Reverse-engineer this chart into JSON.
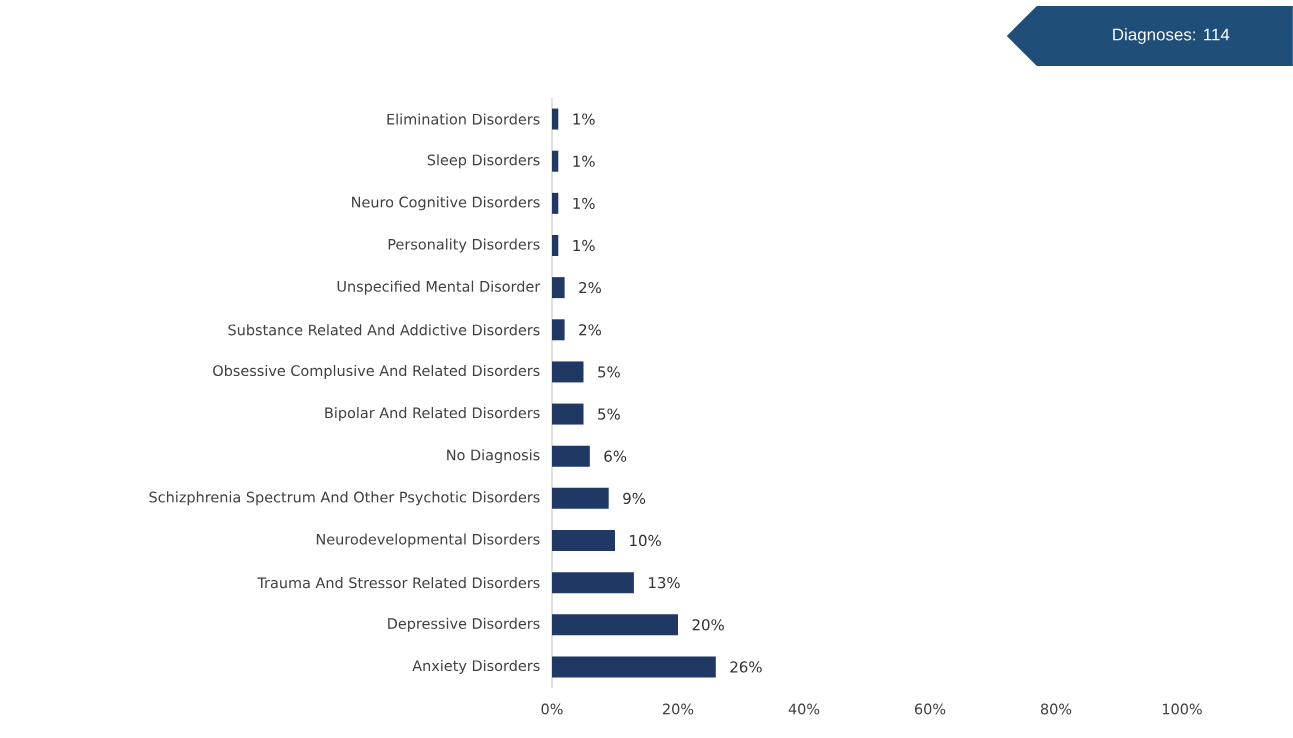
{
  "chart_data": {
    "type": "bar",
    "orientation": "horizontal",
    "title": "Diagnoses: 114",
    "categories": [
      "Elimination Disorders",
      "Sleep Disorders",
      "Neuro Cognitive Disorders",
      "Personality Disorders",
      "Unspecified Mental Disorder",
      "Substance Related And Addictive Disorders",
      "Obsessive Complusive And Related Disorders",
      "Bipolar And Related Disorders",
      "No Diagnosis",
      "Schizphrenia Spectrum And Other Psychotic Disorders",
      "Neurodevelopmental Disorders",
      "Trauma And Stressor Related Disorders",
      "Depressive Disorders",
      "Anxiety Disorders"
    ],
    "values": [
      1,
      1,
      1,
      1,
      2,
      2,
      5,
      5,
      6,
      9,
      10,
      13,
      20,
      26
    ],
    "value_labels": [
      "1%",
      "1%",
      "1%",
      "1%",
      "2%",
      "2%",
      "5%",
      "5%",
      "6%",
      "9%",
      "10%",
      "13%",
      "20%",
      "26%"
    ],
    "color": "#203864",
    "xlim": [
      0,
      100
    ],
    "xticks": [
      {
        "value": 0,
        "label": "0%"
      },
      {
        "value": 20,
        "label": "20%"
      },
      {
        "value": 40,
        "label": "40%"
      },
      {
        "value": 60,
        "label": "60%"
      },
      {
        "value": 80,
        "label": "80%"
      },
      {
        "value": 100,
        "label": "100%"
      }
    ],
    "grid": false
  }
}
